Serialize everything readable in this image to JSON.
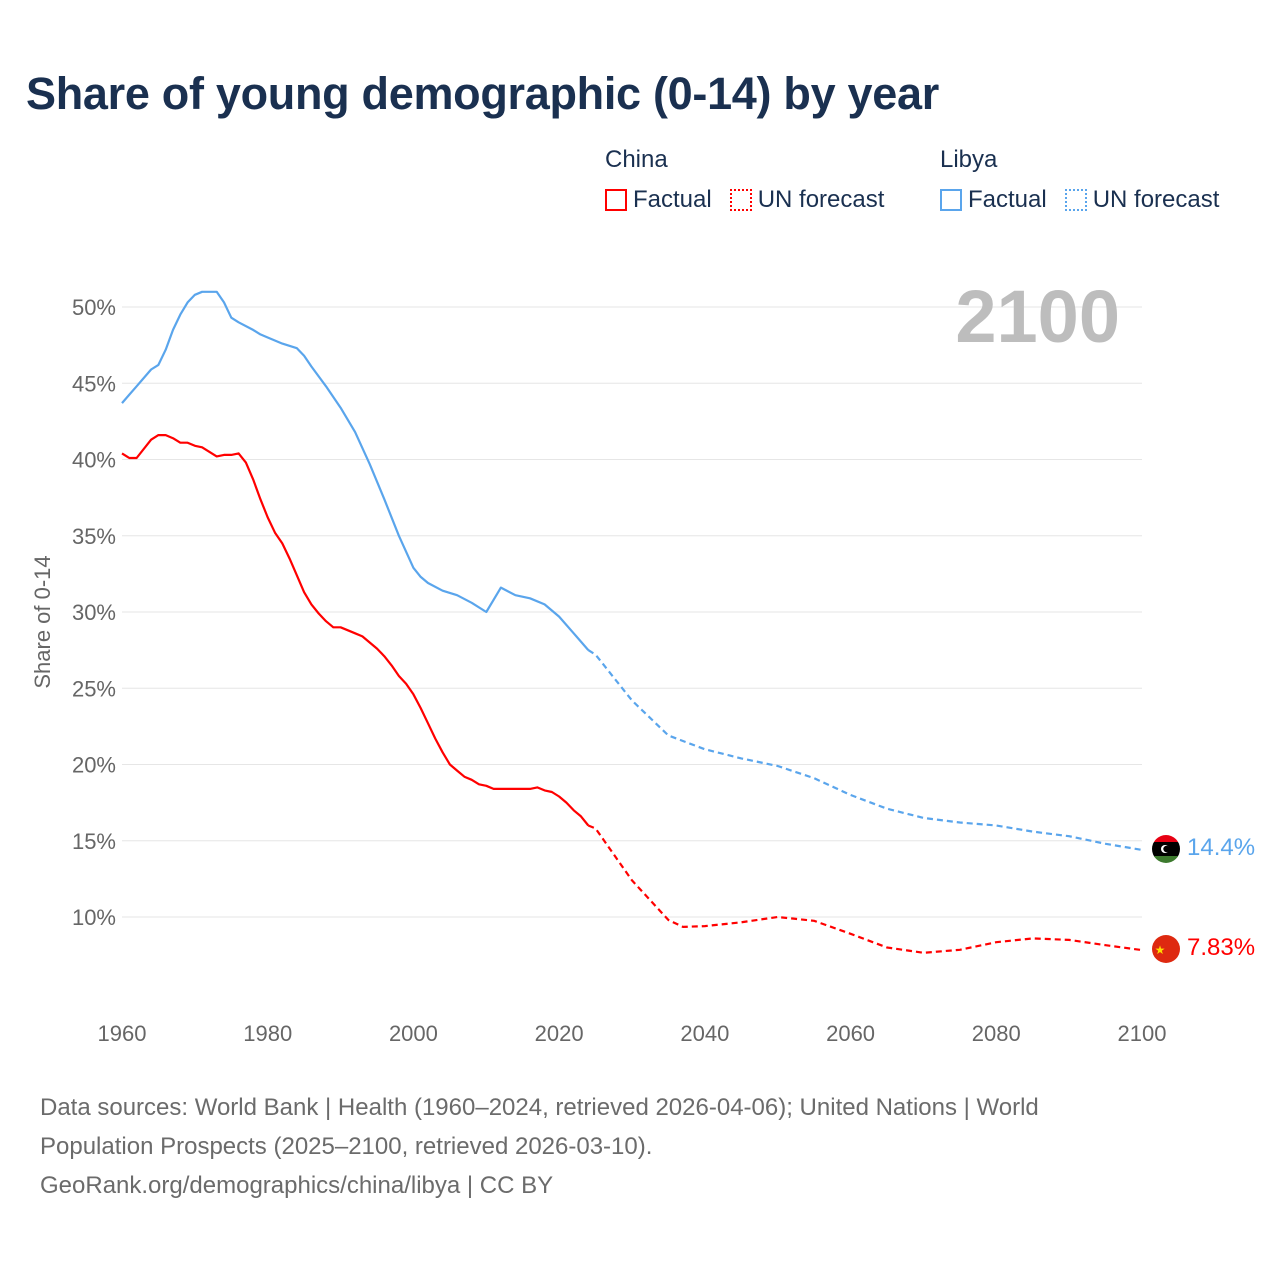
{
  "title": "Share of young demographic (0-14) by year",
  "legend": {
    "groups": [
      {
        "name": "China",
        "factual": "Factual",
        "forecast": "UN forecast",
        "color": "#ff0000"
      },
      {
        "name": "Libya",
        "factual": "Factual",
        "forecast": "UN forecast",
        "color": "#5aa5ec"
      }
    ]
  },
  "year_label": "2100",
  "footer": {
    "line1": "Data sources: World Bank | Health (1960–2024, retrieved 2026-04-06); United Nations | World",
    "line2": "Population Prospects (2025–2100, retrieved 2026-03-10).",
    "line3": "GeoRank.org/demographics/china/libya | CC BY"
  },
  "chart_data": {
    "type": "line",
    "title": "Share of young demographic (0-14) by year",
    "xlabel": "",
    "ylabel": "Share of 0-14",
    "xlim": [
      1960,
      2100
    ],
    "ylim": [
      5,
      52
    ],
    "x_ticks": [
      1960,
      1980,
      2000,
      2020,
      2040,
      2060,
      2080,
      2100
    ],
    "x_tick_labels": [
      "1960",
      "1980",
      "2000",
      "2020",
      "2040",
      "2060",
      "2080",
      "2100"
    ],
    "y_ticks": [
      10,
      15,
      20,
      25,
      30,
      35,
      40,
      45,
      50
    ],
    "y_tick_labels": [
      "10%",
      "15%",
      "20%",
      "25%",
      "30%",
      "35%",
      "40%",
      "45%",
      "50%"
    ],
    "grid": true,
    "legend_position": "top-right",
    "series": [
      {
        "name": "China",
        "color": "#ff0000",
        "end_label": "7.83%",
        "factual": {
          "x": [
            1960,
            1961,
            1962,
            1964,
            1965,
            1966,
            1967,
            1968,
            1969,
            1970,
            1971,
            1973,
            1974,
            1975,
            1976,
            1977,
            1978,
            1979,
            1980,
            1981,
            1982,
            1983,
            1984,
            1985,
            1986,
            1987,
            1988,
            1989,
            1990,
            1991,
            1992,
            1993,
            1994,
            1995,
            1996,
            1997,
            1998,
            1999,
            2000,
            2001,
            2002,
            2003,
            2004,
            2005,
            2006,
            2007,
            2008,
            2009,
            2010,
            2011,
            2012,
            2013,
            2014,
            2015,
            2016,
            2017,
            2018,
            2019,
            2020,
            2021,
            2022,
            2023,
            2024
          ],
          "y": [
            40.4,
            40.1,
            40.1,
            41.3,
            41.6,
            41.6,
            41.4,
            41.1,
            41.1,
            40.9,
            40.8,
            40.2,
            40.3,
            40.3,
            40.4,
            39.8,
            38.7,
            37.4,
            36.2,
            35.2,
            34.5,
            33.5,
            32.4,
            31.3,
            30.5,
            29.9,
            29.4,
            29.0,
            29.0,
            28.8,
            28.6,
            28.4,
            28.0,
            27.6,
            27.1,
            26.5,
            25.8,
            25.3,
            24.6,
            23.7,
            22.7,
            21.7,
            20.8,
            20.0,
            19.6,
            19.2,
            19.0,
            18.7,
            18.6,
            18.4,
            18.4,
            18.4,
            18.4,
            18.4,
            18.4,
            18.5,
            18.3,
            18.2,
            17.9,
            17.5,
            17.0,
            16.6,
            16.0
          ]
        },
        "forecast": {
          "x": [
            2024,
            2025,
            2030,
            2035,
            2037,
            2040,
            2045,
            2050,
            2055,
            2060,
            2065,
            2070,
            2075,
            2080,
            2085,
            2090,
            2095,
            2100
          ],
          "y": [
            16.0,
            15.8,
            12.4,
            9.8,
            9.35,
            9.4,
            9.65,
            10.0,
            9.75,
            8.9,
            8.0,
            7.65,
            7.85,
            8.35,
            8.6,
            8.5,
            8.15,
            7.83
          ]
        }
      },
      {
        "name": "Libya",
        "color": "#5aa5ec",
        "end_label": "14.4%",
        "factual": {
          "x": [
            1960,
            1962,
            1964,
            1965,
            1966,
            1967,
            1968,
            1969,
            1970,
            1971,
            1973,
            1974,
            1975,
            1976,
            1978,
            1979,
            1980,
            1982,
            1984,
            1985,
            1986,
            1988,
            1990,
            1992,
            1994,
            1996,
            1998,
            2000,
            2001,
            2002,
            2004,
            2006,
            2008,
            2010,
            2011,
            2012,
            2014,
            2016,
            2018,
            2020,
            2022,
            2024
          ],
          "y": [
            43.7,
            44.8,
            45.9,
            46.2,
            47.2,
            48.5,
            49.5,
            50.3,
            50.8,
            51.0,
            51.0,
            50.3,
            49.3,
            49.0,
            48.5,
            48.2,
            48.0,
            47.6,
            47.3,
            46.8,
            46.1,
            44.8,
            43.4,
            41.8,
            39.7,
            37.4,
            35.0,
            32.9,
            32.3,
            31.9,
            31.4,
            31.1,
            30.6,
            30.0,
            30.8,
            31.6,
            31.1,
            30.9,
            30.5,
            29.7,
            28.6,
            27.5
          ]
        },
        "forecast": {
          "x": [
            2024,
            2025,
            2030,
            2035,
            2040,
            2045,
            2050,
            2055,
            2060,
            2065,
            2070,
            2075,
            2080,
            2085,
            2090,
            2095,
            2100
          ],
          "y": [
            27.5,
            27.2,
            24.2,
            21.9,
            21.0,
            20.4,
            19.9,
            19.1,
            18.0,
            17.1,
            16.5,
            16.2,
            16.0,
            15.6,
            15.3,
            14.8,
            14.4
          ]
        }
      }
    ]
  }
}
